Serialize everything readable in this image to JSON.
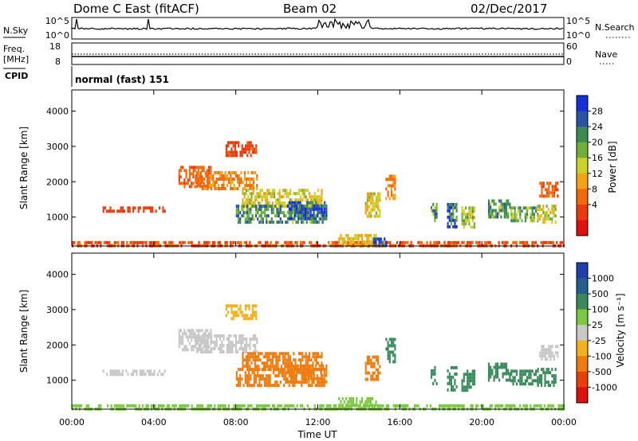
{
  "header": {
    "title": "Dome C East (fitACF)",
    "beam": "Beam 02",
    "date": "02/Dec/2017"
  },
  "panels": {
    "sky": {
      "label": "N.Sky",
      "right_label": "N.Search",
      "left_ticks": [
        "10^5",
        "10^0"
      ],
      "right_ticks": [
        "10^5",
        "10^0"
      ]
    },
    "freq": {
      "label_line1": "Freq.",
      "label_line2": "[MHz]",
      "right_label": "Nave",
      "left_ticks": [
        "18",
        "8"
      ],
      "right_ticks": [
        "60",
        "0"
      ]
    },
    "cpid": {
      "label": "CPID",
      "value": "normal (fast) 151"
    }
  },
  "colorbars": {
    "power": {
      "title": "Power [dB]",
      "ticks": [
        "28",
        "24",
        "20",
        "16",
        "12",
        "8",
        "4"
      ],
      "colors": [
        "#1530d8",
        "#2a53a8",
        "#3d8a55",
        "#6fb03a",
        "#cdd02a",
        "#f2a316",
        "#f06a0c",
        "#e83a0c",
        "#e01010"
      ]
    },
    "velocity": {
      "title": "Velocity [m s⁻¹]",
      "ticks": [
        "1000",
        "500",
        "100",
        "25",
        "-25",
        "-100",
        "-500",
        "-1000"
      ],
      "colors": [
        "#1f3fae",
        "#245e8f",
        "#3a8a5c",
        "#7bc940",
        "#c8c8c8",
        "#f1b21e",
        "#ef7c10",
        "#e8400b",
        "#e01010"
      ]
    }
  },
  "chart_data": [
    {
      "type": "heatmap",
      "name": "power",
      "ylabel": "Slant Range [km]",
      "yticks": [
        1000,
        2000,
        3000,
        4000
      ],
      "ylim": [
        180,
        4600
      ],
      "xlim": [
        0,
        24
      ],
      "xticks": [
        "00:00",
        "04:00",
        "08:00",
        "12:00",
        "16:00",
        "20:00",
        "00:00"
      ],
      "color_scale": "power",
      "value_range": [
        0,
        32
      ],
      "regions": [
        {
          "t": [
            0.0,
            24.0
          ],
          "r": [
            190,
            320
          ],
          "v": 7
        },
        {
          "t": [
            1.5,
            4.5
          ],
          "r": [
            1180,
            1300
          ],
          "v": 5
        },
        {
          "t": [
            5.2,
            6.8
          ],
          "r": [
            1900,
            2450
          ],
          "v": 8
        },
        {
          "t": [
            6.0,
            9.0
          ],
          "r": [
            1800,
            2300
          ],
          "v": 10
        },
        {
          "t": [
            7.5,
            9.0
          ],
          "r": [
            2700,
            3150
          ],
          "v": 6
        },
        {
          "t": [
            8.3,
            12.2
          ],
          "r": [
            1300,
            1800
          ],
          "v": 15
        },
        {
          "t": [
            8.0,
            12.3
          ],
          "r": [
            850,
            1350
          ],
          "v": 23
        },
        {
          "t": [
            10.5,
            12.4
          ],
          "r": [
            950,
            1450
          ],
          "v": 28
        },
        {
          "t": [
            13.0,
            14.8
          ],
          "r": [
            190,
            520
          ],
          "v": 14
        },
        {
          "t": [
            14.7,
            15.3
          ],
          "r": [
            190,
            420
          ],
          "v": 29
        },
        {
          "t": [
            14.3,
            15.0
          ],
          "r": [
            1050,
            1700
          ],
          "v": 15
        },
        {
          "t": [
            15.3,
            15.8
          ],
          "r": [
            1500,
            2200
          ],
          "v": 10
        },
        {
          "t": [
            17.5,
            17.8
          ],
          "r": [
            900,
            1400
          ],
          "v": 22
        },
        {
          "t": [
            18.3,
            18.8
          ],
          "r": [
            700,
            1400
          ],
          "v": 26
        },
        {
          "t": [
            19.0,
            19.6
          ],
          "r": [
            700,
            1300
          ],
          "v": 18
        },
        {
          "t": [
            20.3,
            21.4
          ],
          "r": [
            1000,
            1500
          ],
          "v": 22
        },
        {
          "t": [
            21.4,
            22.7
          ],
          "r": [
            900,
            1300
          ],
          "v": 20
        },
        {
          "t": [
            22.7,
            23.6
          ],
          "r": [
            850,
            1350
          ],
          "v": 16
        },
        {
          "t": [
            22.8,
            23.7
          ],
          "r": [
            1600,
            2000
          ],
          "v": 8
        }
      ]
    },
    {
      "type": "heatmap",
      "name": "velocity",
      "ylabel": "Slant Range [km]",
      "yticks": [
        1000,
        2000,
        3000,
        4000
      ],
      "ylim": [
        180,
        4600
      ],
      "xlim": [
        0,
        24
      ],
      "xticks": [
        "00:00",
        "04:00",
        "08:00",
        "12:00",
        "16:00",
        "20:00",
        "00:00"
      ],
      "xlabel": "Time UT",
      "color_scale": "velocity",
      "regions": [
        {
          "t": [
            0.0,
            24.0
          ],
          "r": [
            190,
            320
          ],
          "v": 60
        },
        {
          "t": [
            1.5,
            4.5
          ],
          "r": [
            1180,
            1300
          ],
          "v": -5
        },
        {
          "t": [
            5.2,
            6.8
          ],
          "r": [
            1900,
            2450
          ],
          "v": 0
        },
        {
          "t": [
            6.0,
            9.0
          ],
          "r": [
            1800,
            2300
          ],
          "v": 0
        },
        {
          "t": [
            7.5,
            9.0
          ],
          "r": [
            2700,
            3150
          ],
          "v": -60
        },
        {
          "t": [
            8.3,
            12.2
          ],
          "r": [
            1300,
            1800
          ],
          "v": -300
        },
        {
          "t": [
            8.0,
            12.3
          ],
          "r": [
            850,
            1350
          ],
          "v": -150
        },
        {
          "t": [
            10.5,
            12.4
          ],
          "r": [
            950,
            1450
          ],
          "v": -400
        },
        {
          "t": [
            13.0,
            14.8
          ],
          "r": [
            190,
            520
          ],
          "v": 60
        },
        {
          "t": [
            14.3,
            15.0
          ],
          "r": [
            1050,
            1700
          ],
          "v": -200
        },
        {
          "t": [
            15.3,
            15.8
          ],
          "r": [
            1500,
            2200
          ],
          "v": 200
        },
        {
          "t": [
            17.5,
            17.8
          ],
          "r": [
            900,
            1400
          ],
          "v": 300
        },
        {
          "t": [
            18.3,
            18.8
          ],
          "r": [
            700,
            1400
          ],
          "v": 300
        },
        {
          "t": [
            19.0,
            19.6
          ],
          "r": [
            700,
            1300
          ],
          "v": 300
        },
        {
          "t": [
            20.3,
            21.4
          ],
          "r": [
            1000,
            1500
          ],
          "v": 300
        },
        {
          "t": [
            21.4,
            22.7
          ],
          "r": [
            900,
            1300
          ],
          "v": 300
        },
        {
          "t": [
            22.7,
            23.6
          ],
          "r": [
            850,
            1350
          ],
          "v": 200
        },
        {
          "t": [
            22.8,
            23.7
          ],
          "r": [
            1600,
            2000
          ],
          "v": 0
        }
      ]
    }
  ]
}
